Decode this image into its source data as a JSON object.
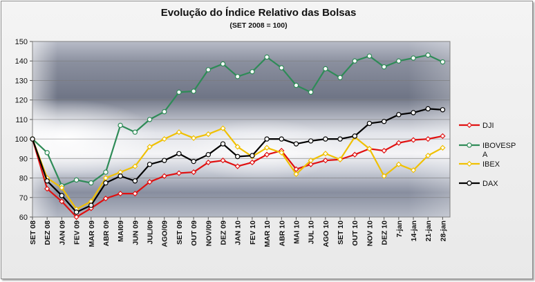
{
  "chart_data": {
    "type": "line",
    "title": "Evolução do Índice Relativo das Bolsas",
    "subtitle": "(SET 2008 = 100)",
    "ylim": [
      60,
      150
    ],
    "yticks": [
      60,
      70,
      80,
      90,
      100,
      110,
      120,
      130,
      140,
      150
    ],
    "grid": true,
    "legend_position": "right",
    "categories": [
      "SET 08",
      "DEZ 08",
      "JAN 09",
      "FEV 09",
      "MAR 09",
      "ABR 09",
      "MAI09",
      "JUN 09",
      "JUL/09",
      "AGO/09",
      "SET 09",
      "OUT 09",
      "NOV/09",
      "DEZ 09",
      "JAN 10",
      "FEV 10",
      "MAR 10",
      "ABR 10",
      "MAI 10",
      "JUL 10",
      "AGO 10",
      "SET 10",
      "OUT 10",
      "NOV 10",
      "DEZ 10",
      "7-jan",
      "14-jan",
      "21-jan",
      "28-jan"
    ],
    "series": [
      {
        "name": "DJI",
        "color": "#e01010",
        "marker": "diamond",
        "values": [
          100,
          74.5,
          68,
          60,
          64.5,
          69.5,
          72,
          72,
          78,
          81,
          82.5,
          83,
          88,
          89,
          86,
          88,
          92,
          94,
          84.5,
          87,
          89,
          89.5,
          92,
          95,
          94,
          98,
          99.5,
          100,
          101.5
        ]
      },
      {
        "name": "IBOVESPA",
        "color": "#2e8b57",
        "marker": "circle",
        "values": [
          100,
          93,
          76,
          79,
          77.5,
          83,
          107,
          103.5,
          110,
          114,
          124,
          124.5,
          135.5,
          138.5,
          132,
          134.5,
          142,
          136.5,
          127.5,
          124,
          136,
          131.5,
          140,
          142.5,
          137,
          140,
          141.5,
          143,
          139.5
        ]
      },
      {
        "name": "IBEX",
        "color": "#f0c000",
        "marker": "diamond",
        "values": [
          100,
          80,
          75,
          64,
          68,
          80,
          83,
          86,
          96,
          100,
          103.5,
          100.5,
          102.5,
          105.5,
          96,
          91,
          95.5,
          93,
          82,
          89,
          92.5,
          89.5,
          101,
          95,
          81,
          87,
          84,
          91.5,
          95.5
        ]
      },
      {
        "name": "DAX",
        "color": "#000000",
        "marker": "circle",
        "values": [
          100,
          78.5,
          71,
          62.5,
          66,
          77.5,
          81,
          78.5,
          87,
          89,
          92.5,
          88.5,
          92,
          97.5,
          91,
          91.5,
          100,
          100,
          97.5,
          99,
          100,
          100,
          101.5,
          108,
          109,
          112.5,
          113.5,
          115.5,
          115
        ]
      }
    ]
  }
}
